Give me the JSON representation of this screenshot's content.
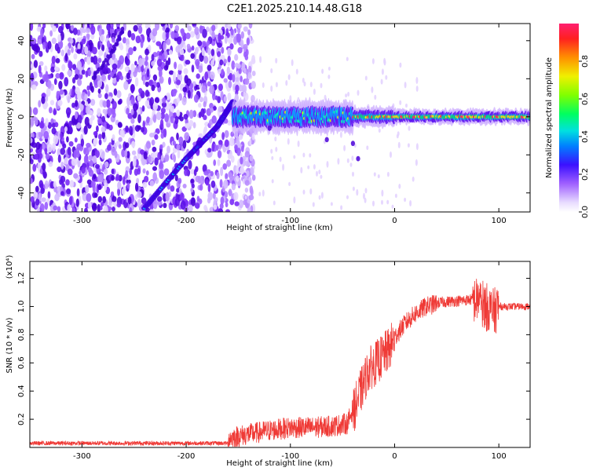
{
  "title": "C2E1.2025.210.14.48.G18",
  "colors": {
    "snr_line": "#ef3a36",
    "spec_low": "#d9c2ff",
    "spec_mid": "#6a1bf0",
    "spec_high": "#ff2060"
  },
  "chart_data": [
    {
      "type": "heatmap",
      "xlabel": "Height of straight line (km)",
      "ylabel": "Frequency (Hz)",
      "xlim": [
        -350,
        130
      ],
      "ylim": [
        -50,
        49
      ],
      "xticks": [
        -300,
        -200,
        -100,
        0,
        100
      ],
      "yticks": [
        -40,
        -20,
        0,
        20,
        40
      ],
      "xtick_labels": [
        "-300",
        "-200",
        "-100",
        "0",
        "100"
      ],
      "ytick_labels": [
        "-40",
        "-20",
        "0",
        "20",
        "40"
      ],
      "colorbar": {
        "label": "Normalized spectral amplitude",
        "range": [
          0,
          1
        ],
        "ticks": [
          0.0,
          0.2,
          0.4,
          0.6,
          0.8
        ],
        "tick_labels": [
          "0.0",
          "0.2",
          "0.4",
          "0.6",
          "0.8"
        ],
        "colormap": "rainbow"
      },
      "features": {
        "noise_region_x": [
          -350,
          -150
        ],
        "direct_signal_ridge": [
          [
            -240,
            -48
          ],
          [
            -200,
            -22
          ],
          [
            -170,
            -5
          ],
          [
            -155,
            8
          ]
        ],
        "secondary_streak": [
          [
            -290,
            20
          ],
          [
            -270,
            35
          ],
          [
            -260,
            46
          ]
        ],
        "main_band_center_hz": 0,
        "main_band_x": [
          -155,
          130
        ]
      }
    },
    {
      "type": "line",
      "xlabel": "Height of straight line (km)",
      "ylabel": "SNR (10 * v/v)",
      "ylabel_multiplier": "(x10⁴)",
      "xlim": [
        -350,
        130
      ],
      "ylim": [
        0,
        1.32
      ],
      "xticks": [
        -300,
        -200,
        -100,
        0,
        100
      ],
      "yticks": [
        0.2,
        0.4,
        0.6,
        0.8,
        1.0,
        1.2
      ],
      "xtick_labels": [
        "-300",
        "-200",
        "-100",
        "0",
        "100"
      ],
      "ytick_labels": [
        "0.2",
        "0.4",
        "0.6",
        "0.8",
        "1.0",
        "1.2"
      ],
      "series": [
        {
          "x": [
            -350,
            -300,
            -250,
            -200,
            -160,
            -150,
            -120,
            -100,
            -80,
            -60,
            -45,
            -35,
            -25,
            -15,
            -5,
            0,
            10,
            20,
            30,
            45,
            60,
            75,
            85,
            95,
            100,
            110,
            130
          ],
          "values": [
            0.03,
            0.03,
            0.03,
            0.03,
            0.03,
            0.05,
            0.09,
            0.11,
            0.11,
            0.12,
            0.14,
            0.35,
            0.55,
            0.62,
            0.7,
            0.78,
            0.88,
            0.95,
            1.0,
            1.03,
            1.04,
            1.05,
            1.02,
            0.96,
            1.0,
            1.0,
            1.0
          ]
        }
      ]
    }
  ]
}
